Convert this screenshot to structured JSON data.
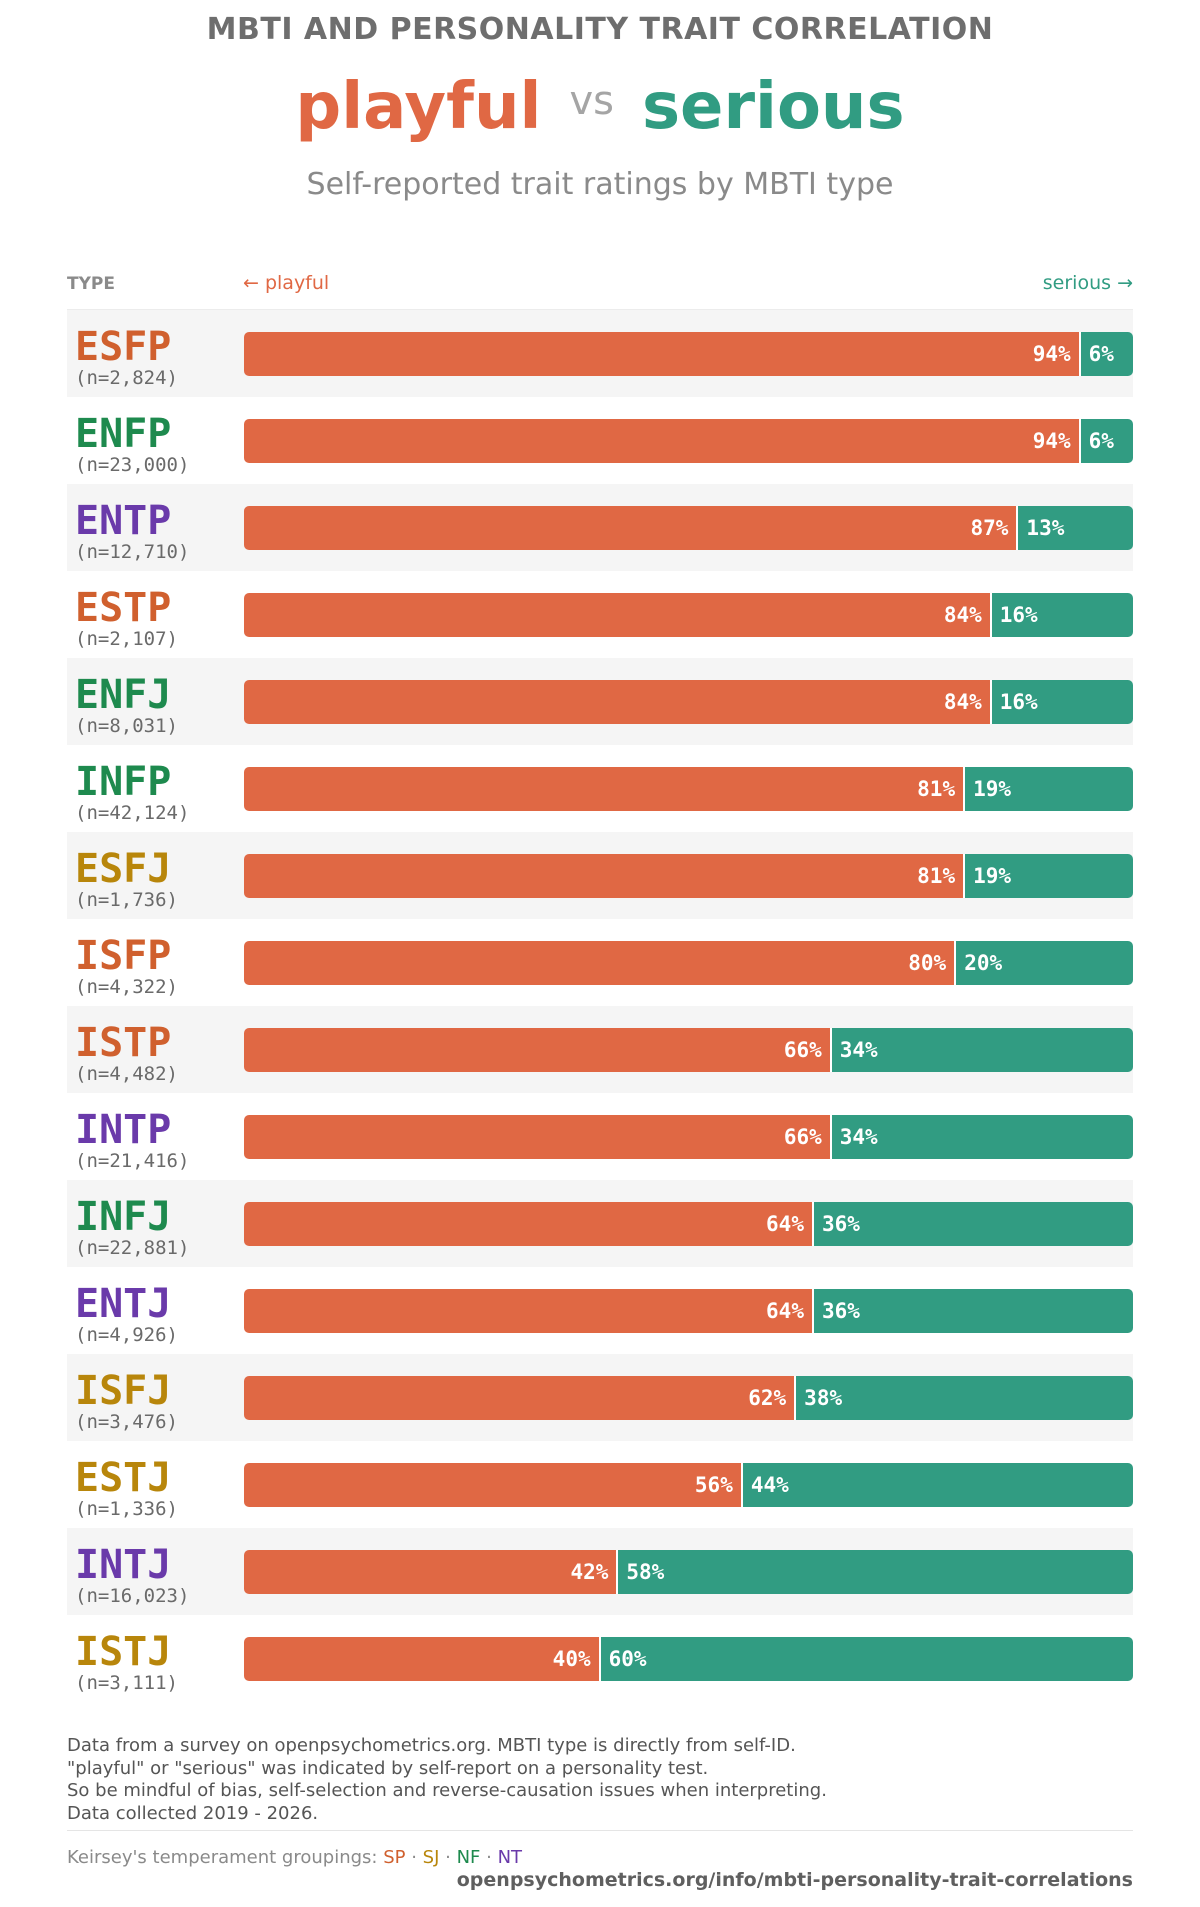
{
  "header": {
    "title": "MBTI AND PERSONALITY TRAIT CORRELATION",
    "left_word": "playful",
    "vs": "vs",
    "right_word": "serious",
    "subtitle": "Self-reported trait ratings by MBTI type"
  },
  "columns": {
    "type": "TYPE",
    "left": "← playful",
    "right": "serious →"
  },
  "colors": {
    "playful": "#e06844",
    "serious": "#319c82",
    "SP": "#d0602e",
    "SJ": "#b8860b",
    "NF": "#1e8a4e",
    "NT": "#6a3aaa"
  },
  "chart_data": {
    "type": "bar",
    "orientation": "horizontal-stacked",
    "series": [
      {
        "name": "playful",
        "values": [
          94,
          94,
          87,
          84,
          84,
          81,
          81,
          80,
          66,
          66,
          64,
          64,
          62,
          56,
          42,
          40
        ]
      },
      {
        "name": "serious",
        "values": [
          6,
          6,
          13,
          16,
          16,
          19,
          19,
          20,
          34,
          34,
          36,
          36,
          38,
          44,
          58,
          60
        ]
      }
    ],
    "rows": [
      {
        "type": "ESFP",
        "n": "(n=2,824)",
        "group": "SP",
        "playful": 94,
        "serious": 6
      },
      {
        "type": "ENFP",
        "n": "(n=23,000)",
        "group": "NF",
        "playful": 94,
        "serious": 6
      },
      {
        "type": "ENTP",
        "n": "(n=12,710)",
        "group": "NT",
        "playful": 87,
        "serious": 13
      },
      {
        "type": "ESTP",
        "n": "(n=2,107)",
        "group": "SP",
        "playful": 84,
        "serious": 16
      },
      {
        "type": "ENFJ",
        "n": "(n=8,031)",
        "group": "NF",
        "playful": 84,
        "serious": 16
      },
      {
        "type": "INFP",
        "n": "(n=42,124)",
        "group": "NF",
        "playful": 81,
        "serious": 19
      },
      {
        "type": "ESFJ",
        "n": "(n=1,736)",
        "group": "SJ",
        "playful": 81,
        "serious": 19
      },
      {
        "type": "ISFP",
        "n": "(n=4,322)",
        "group": "SP",
        "playful": 80,
        "serious": 20
      },
      {
        "type": "ISTP",
        "n": "(n=4,482)",
        "group": "SP",
        "playful": 66,
        "serious": 34
      },
      {
        "type": "INTP",
        "n": "(n=21,416)",
        "group": "NT",
        "playful": 66,
        "serious": 34
      },
      {
        "type": "INFJ",
        "n": "(n=22,881)",
        "group": "NF",
        "playful": 64,
        "serious": 36
      },
      {
        "type": "ENTJ",
        "n": "(n=4,926)",
        "group": "NT",
        "playful": 64,
        "serious": 36
      },
      {
        "type": "ISFJ",
        "n": "(n=3,476)",
        "group": "SJ",
        "playful": 62,
        "serious": 38
      },
      {
        "type": "ESTJ",
        "n": "(n=1,336)",
        "group": "SJ",
        "playful": 56,
        "serious": 44
      },
      {
        "type": "INTJ",
        "n": "(n=16,023)",
        "group": "NT",
        "playful": 42,
        "serious": 58
      },
      {
        "type": "ISTJ",
        "n": "(n=3,111)",
        "group": "SJ",
        "playful": 40,
        "serious": 60
      }
    ],
    "xlim": [
      0,
      100
    ],
    "grid": false
  },
  "notes": {
    "lines": [
      "Data from a survey on openpsychometrics.org. MBTI type is directly from self-ID.",
      "\"playful\" or \"serious\" was indicated by self-report on a personality test.",
      "So be mindful of bias, self-selection and reverse-causation issues when interpreting.",
      "Data collected 2019 - 2026."
    ]
  },
  "legend": {
    "label": "Keirsey's temperament groupings:",
    "groups": [
      "SP",
      "SJ",
      "NF",
      "NT"
    ],
    "separator": " · "
  },
  "source": "openpsychometrics.org/info/mbti-personality-trait-correlations"
}
